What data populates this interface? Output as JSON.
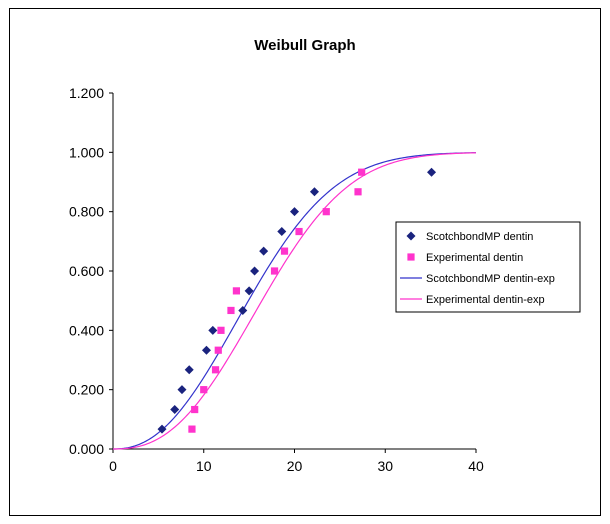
{
  "chart_data": {
    "type": "scatter",
    "title": "Weibull Graph",
    "xlim": [
      0,
      40
    ],
    "ylim": [
      0,
      1.2
    ],
    "x_ticks": [
      "0",
      "10",
      "20",
      "30",
      "40"
    ],
    "y_ticks": [
      "0.000",
      "0.200",
      "0.400",
      "0.600",
      "0.800",
      "1.000",
      "1.200"
    ],
    "grid": false,
    "legend_position": "right",
    "series": [
      {
        "name": "ScotchbondMP dentin",
        "kind": "points",
        "marker": "diamond",
        "color": "#1a237e",
        "points": [
          [
            5.4,
            0.067
          ],
          [
            6.8,
            0.133
          ],
          [
            7.6,
            0.2
          ],
          [
            8.4,
            0.267
          ],
          [
            10.3,
            0.333
          ],
          [
            11.0,
            0.4
          ],
          [
            14.3,
            0.467
          ],
          [
            15.0,
            0.533
          ],
          [
            15.6,
            0.6
          ],
          [
            16.6,
            0.667
          ],
          [
            18.6,
            0.733
          ],
          [
            20.0,
            0.8
          ],
          [
            22.2,
            0.867
          ],
          [
            35.1,
            0.933
          ]
        ]
      },
      {
        "name": "Experimental dentin",
        "kind": "points",
        "marker": "square",
        "color": "#ff33cc",
        "points": [
          [
            8.7,
            0.067
          ],
          [
            9.0,
            0.133
          ],
          [
            10.0,
            0.2
          ],
          [
            11.3,
            0.267
          ],
          [
            11.6,
            0.333
          ],
          [
            11.9,
            0.4
          ],
          [
            13.0,
            0.467
          ],
          [
            13.6,
            0.533
          ],
          [
            17.8,
            0.6
          ],
          [
            18.9,
            0.667
          ],
          [
            20.5,
            0.733
          ],
          [
            23.5,
            0.8
          ],
          [
            27.0,
            0.867
          ],
          [
            27.4,
            0.933
          ]
        ]
      },
      {
        "name": "ScotchbondMP dentin-exp",
        "kind": "line",
        "color": "#3333cc",
        "weibull": {
          "scale": 17.5,
          "shape": 2.3
        }
      },
      {
        "name": "Experimental dentin-exp",
        "kind": "line",
        "color": "#ff33cc",
        "weibull": {
          "scale": 19.0,
          "shape": 2.5
        }
      }
    ]
  }
}
